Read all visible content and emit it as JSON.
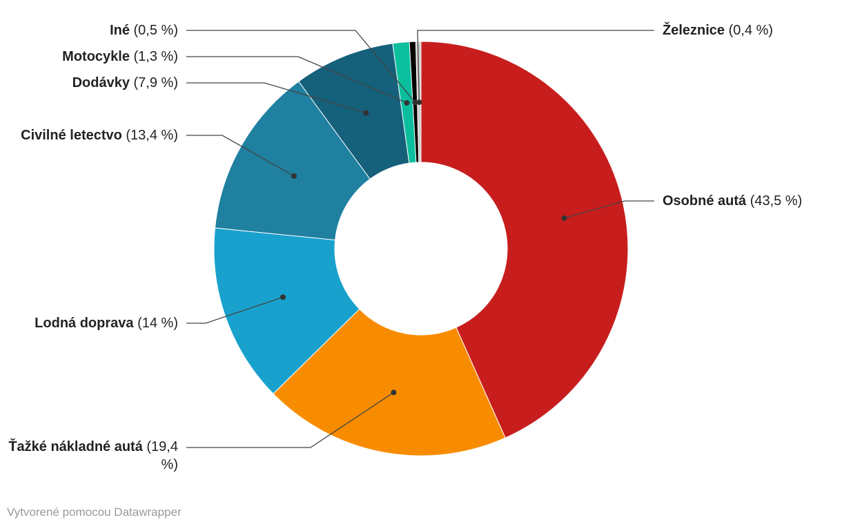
{
  "chart_data": {
    "type": "pie",
    "variant": "donut",
    "slices": [
      {
        "name": "Osobné autá",
        "value": 43.5,
        "value_label": "(43,5 %)",
        "color": "#c71e1d"
      },
      {
        "name": "Ťažké nákladné autá",
        "value": 19.4,
        "value_label": "(19,4 %)",
        "color": "#f88c00"
      },
      {
        "name": "Lodná doprava",
        "value": 14,
        "value_label": "(14 %)",
        "color": "#18a1cd"
      },
      {
        "name": "Civilné letectvo",
        "value": 13.4,
        "value_label": "(13,4 %)",
        "color": "#1f80a0"
      },
      {
        "name": "Dodávky",
        "value": 7.9,
        "value_label": "(7,9 %)",
        "color": "#15607a"
      },
      {
        "name": "Motocykle",
        "value": 1.3,
        "value_label": "(1,3 %)",
        "color": "#0bbf9e"
      },
      {
        "name": "Iné",
        "value": 0.5,
        "value_label": "(0,5 %)",
        "color": "#000000"
      },
      {
        "name": "Železnice",
        "value": 0.4,
        "value_label": "(0,4 %)",
        "color": "#cccccc"
      }
    ]
  },
  "footer": "Vytvorené pomocou Datawrapper"
}
